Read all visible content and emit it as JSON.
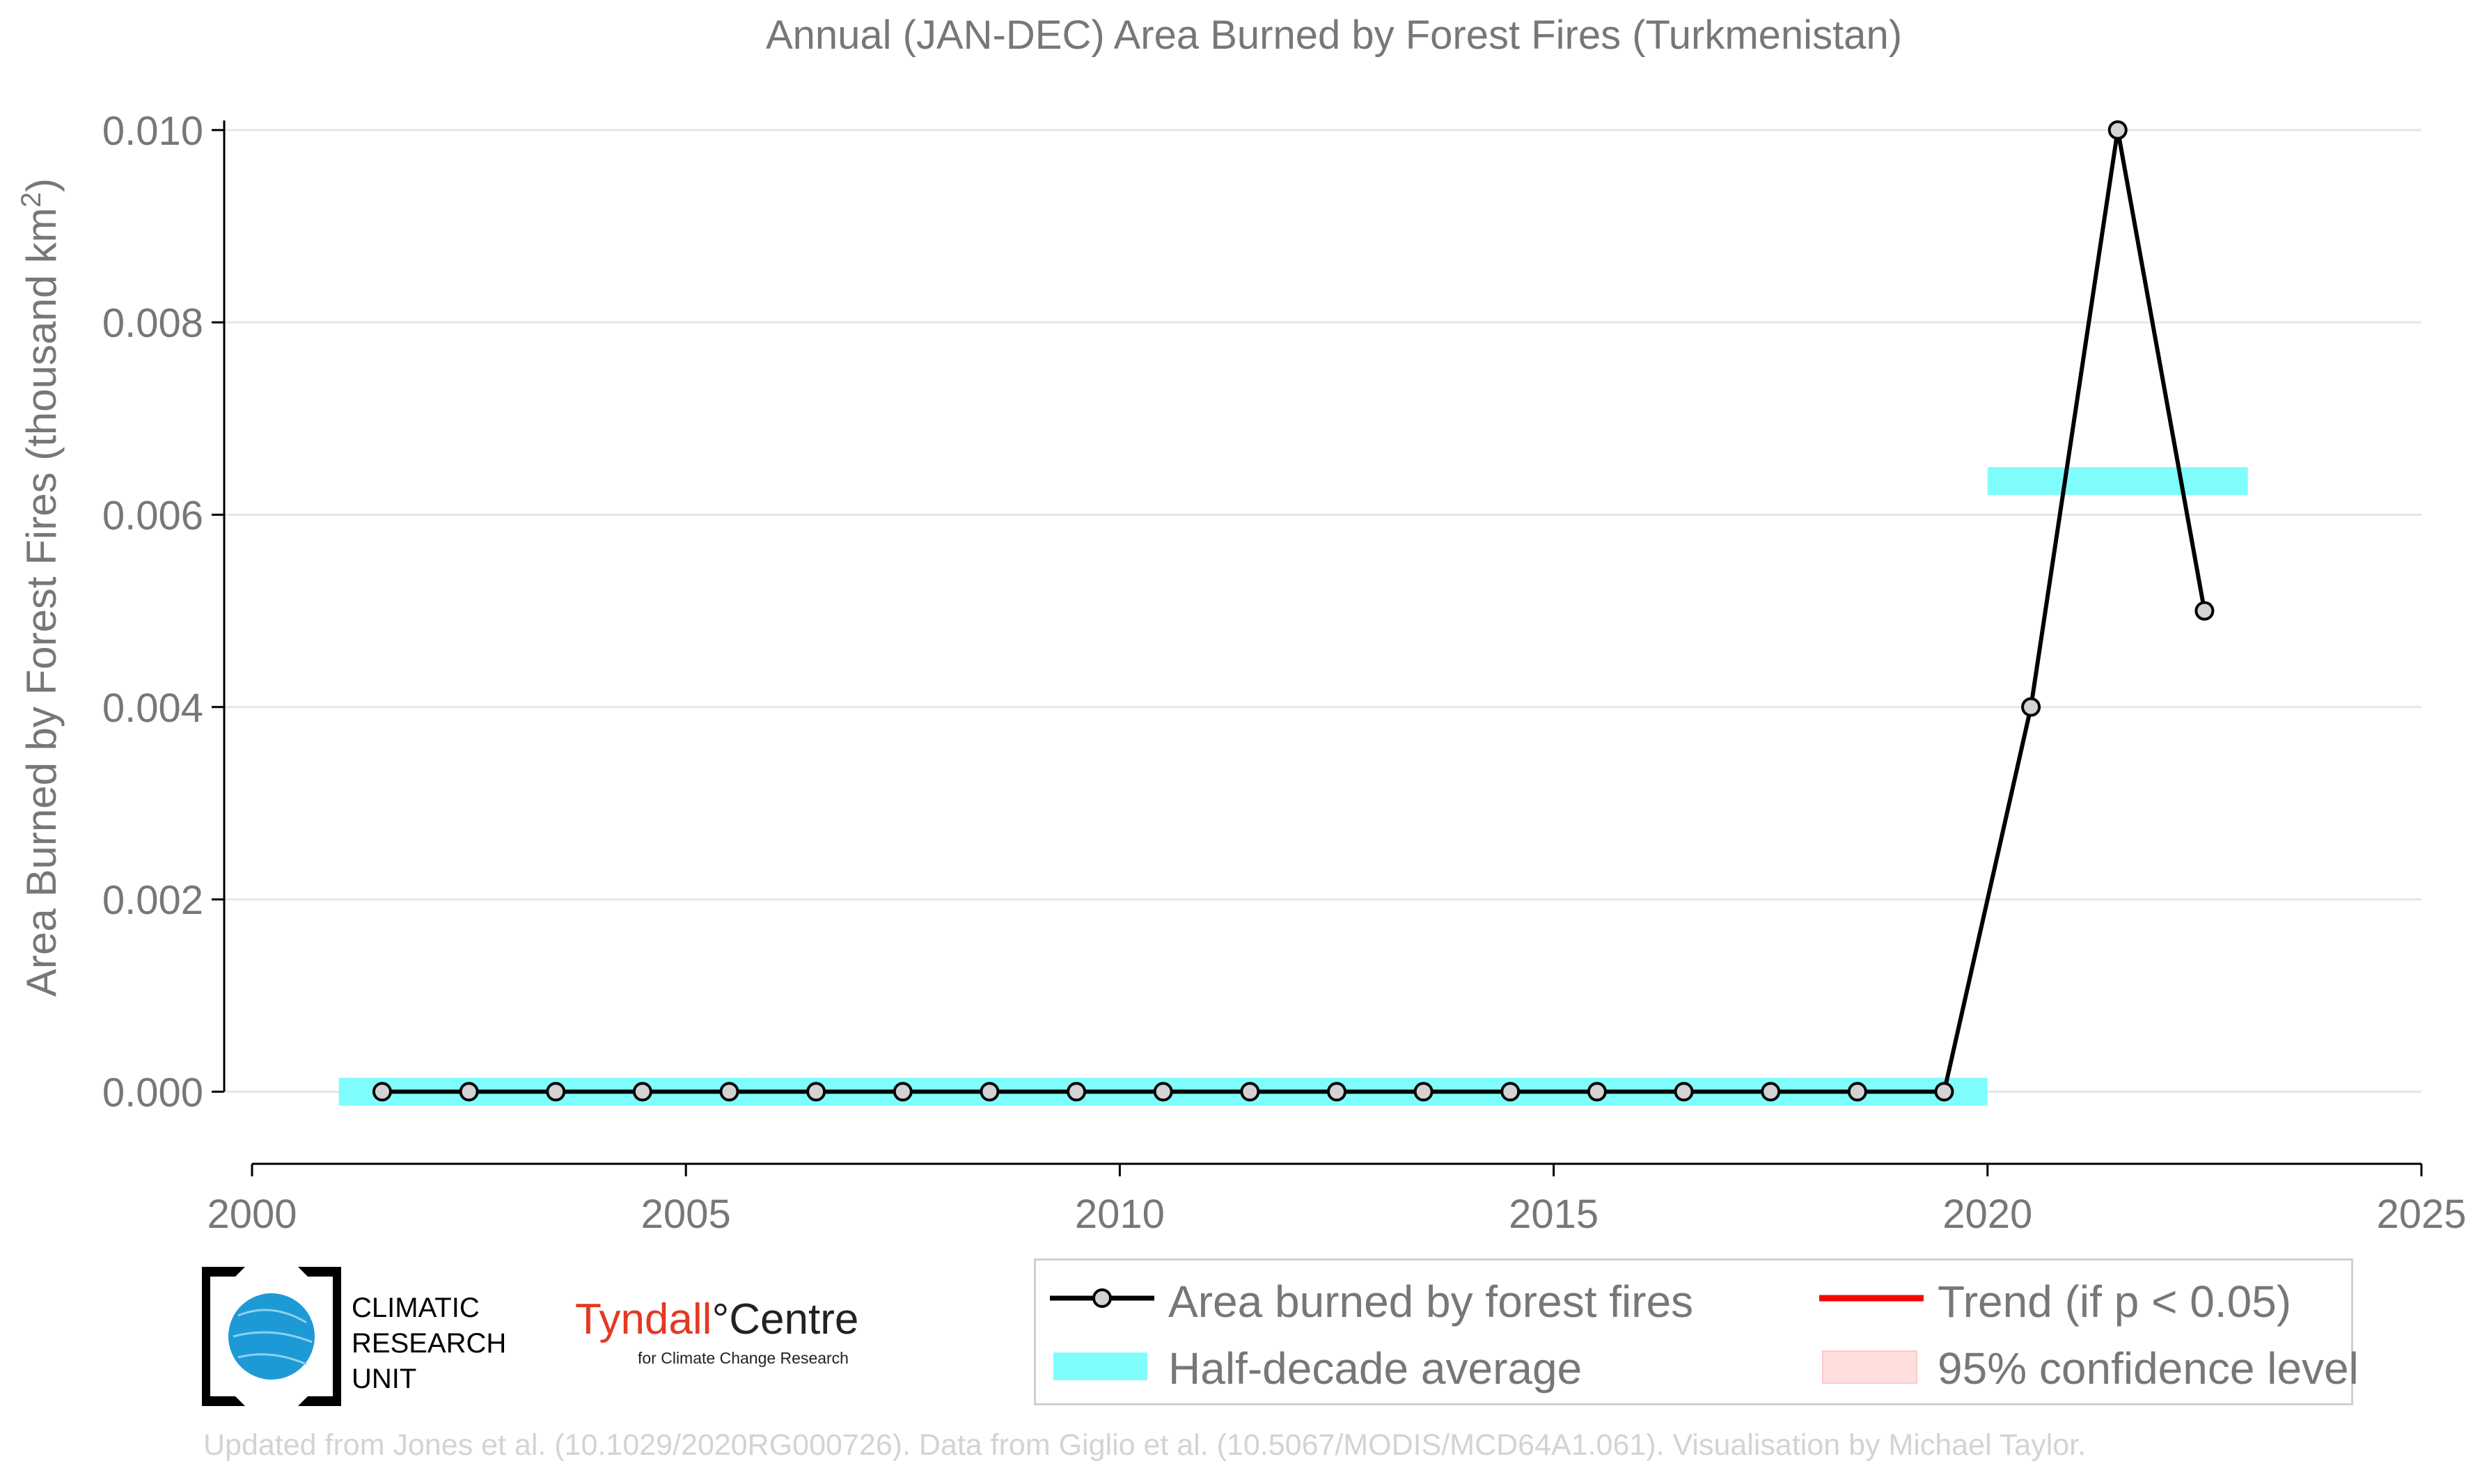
{
  "chart_data": {
    "type": "line",
    "title": "Annual (JAN-DEC) Area Burned by Forest Fires (Turkmenistan)",
    "ylabel": "Area Burned by Forest Fires (thousand km²)",
    "xlabel": "",
    "xlim": [
      2000,
      2025
    ],
    "ylim": [
      -0.00075,
      0.0101
    ],
    "x_ticks": [
      "2000",
      "2005",
      "2010",
      "2015",
      "2020",
      "2025"
    ],
    "y_ticks": [
      "0.000",
      "0.002",
      "0.004",
      "0.006",
      "0.008",
      "0.010"
    ],
    "grid": "horizontal",
    "legend_position": "bottom-right",
    "series": [
      {
        "name": "Area burned by forest fires",
        "x": [
          2001.5,
          2002.5,
          2003.5,
          2004.5,
          2005.5,
          2006.5,
          2007.5,
          2008.5,
          2009.5,
          2010.5,
          2011.5,
          2012.5,
          2013.5,
          2014.5,
          2015.5,
          2016.5,
          2017.5,
          2018.5,
          2019.5,
          2020.5,
          2021.5,
          2022.5
        ],
        "values": [
          0,
          0,
          0,
          0,
          0,
          0,
          0,
          0,
          0,
          0,
          0,
          0,
          0,
          0,
          0,
          0,
          0,
          0,
          0,
          0.004,
          0.01,
          0.005
        ],
        "color": "#000000"
      },
      {
        "name": "Half-decade average",
        "segments": [
          {
            "x_start": 2001,
            "x_end": 2020,
            "value": 0.0
          },
          {
            "x_start": 2020,
            "x_end": 2023,
            "value": 0.00635
          }
        ],
        "color": "#7ffdfd"
      }
    ],
    "legend": [
      {
        "label": "Area burned by forest fires",
        "kind": "line-marker",
        "color": "#000000"
      },
      {
        "label": "Half-decade average",
        "kind": "band",
        "color": "#7ffdfd"
      },
      {
        "label": "Trend (if p < 0.05)",
        "kind": "line",
        "color": "#ff0000"
      },
      {
        "label": "95% confidence level",
        "kind": "patch",
        "color": "#ffdede"
      }
    ]
  },
  "logos": {
    "cru": [
      "CLIMATIC",
      "RESEARCH",
      "UNIT"
    ],
    "tyndall_part1": "Tyndall",
    "tyndall_degree": "°",
    "tyndall_part2": "Centre",
    "tyndall_sub": "for Climate Change Research"
  },
  "footer": "Updated from Jones et al. (10.1029/2020RG000726). Data from Giglio et al. (10.5067/MODIS/MCD64A1.061). Visualisation by Michael Taylor.",
  "colors": {
    "axis_text": "#777777",
    "grid": "#e6e6e6",
    "marker_fill": "#d3d3d3",
    "band": "#7ffdfd",
    "cru_blue": "#1d9ad6"
  }
}
